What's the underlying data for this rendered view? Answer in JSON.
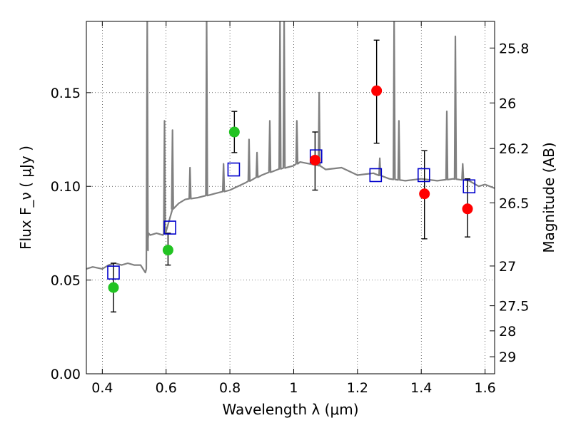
{
  "chart_data": {
    "type": "scatter",
    "xlabel": "Wavelength  λ (μm)",
    "ylabel": "Flux  F_ν  ( μJy )",
    "ylabel_right": "Magnitude (AB)",
    "xlim": [
      0.35,
      1.63
    ],
    "ylim": [
      0.0,
      0.188
    ],
    "grid": true,
    "x_ticks": [
      {
        "value": 0.4,
        "label": "0.4"
      },
      {
        "value": 0.6,
        "label": "0.6"
      },
      {
        "value": 0.8,
        "label": "0.8"
      },
      {
        "value": 1.0,
        "label": "1"
      },
      {
        "value": 1.2,
        "label": "1.2"
      },
      {
        "value": 1.4,
        "label": "1.4"
      },
      {
        "value": 1.6,
        "label": "1.6"
      }
    ],
    "y_ticks": [
      {
        "value": 0.0,
        "label": "0.00"
      },
      {
        "value": 0.05,
        "label": "0.05"
      },
      {
        "value": 0.1,
        "label": "0.10"
      },
      {
        "value": 0.15,
        "label": "0.15"
      }
    ],
    "right_ticks": [
      {
        "flux": 0.1738,
        "label": "25.8"
      },
      {
        "flux": 0.1445,
        "label": "26"
      },
      {
        "flux": 0.1202,
        "label": "26.2"
      },
      {
        "flux": 0.0912,
        "label": "26.5"
      },
      {
        "flux": 0.0575,
        "label": "27"
      },
      {
        "flux": 0.0363,
        "label": "27.5"
      },
      {
        "flux": 0.0229,
        "label": "28"
      },
      {
        "flux": 0.0091,
        "label": "29"
      }
    ],
    "colors": {
      "spectrum": "#808080",
      "green_points": "#22c322",
      "red_points": "#ff0000",
      "model_boxes": "#0000cc",
      "error_bars": "#000000"
    },
    "spectrum": {
      "x": [
        0.35,
        0.37,
        0.4,
        0.42,
        0.44,
        0.46,
        0.48,
        0.5,
        0.52,
        0.535,
        0.538,
        0.542,
        0.545,
        0.55,
        0.57,
        0.59,
        0.6,
        0.62,
        0.64,
        0.66,
        0.7,
        0.75,
        0.8,
        0.85,
        0.9,
        0.95,
        1.0,
        1.02,
        1.05,
        1.08,
        1.1,
        1.15,
        1.2,
        1.25,
        1.3,
        1.35,
        1.4,
        1.45,
        1.5,
        1.55,
        1.58,
        1.6,
        1.63
      ],
      "y": [
        0.056,
        0.057,
        0.056,
        0.058,
        0.059,
        0.058,
        0.059,
        0.058,
        0.058,
        0.054,
        0.056,
        0.07,
        0.075,
        0.074,
        0.075,
        0.074,
        0.076,
        0.088,
        0.091,
        0.093,
        0.094,
        0.096,
        0.098,
        0.102,
        0.106,
        0.109,
        0.111,
        0.113,
        0.112,
        0.111,
        0.109,
        0.11,
        0.106,
        0.107,
        0.104,
        0.103,
        0.104,
        0.103,
        0.104,
        0.103,
        0.1,
        0.101,
        0.099
      ]
    },
    "emission_lines": [
      {
        "x": 0.5408,
        "peak": 0.19
      },
      {
        "x": 0.595,
        "peak": 0.135
      },
      {
        "x": 0.62,
        "peak": 0.13
      },
      {
        "x": 0.675,
        "peak": 0.11
      },
      {
        "x": 0.727,
        "peak": 0.19
      },
      {
        "x": 0.78,
        "peak": 0.112
      },
      {
        "x": 0.86,
        "peak": 0.125
      },
      {
        "x": 0.885,
        "peak": 0.118
      },
      {
        "x": 0.925,
        "peak": 0.135
      },
      {
        "x": 0.957,
        "peak": 0.19
      },
      {
        "x": 0.97,
        "peak": 0.19
      },
      {
        "x": 1.01,
        "peak": 0.135
      },
      {
        "x": 1.08,
        "peak": 0.15
      },
      {
        "x": 1.27,
        "peak": 0.115
      },
      {
        "x": 1.315,
        "peak": 0.19
      },
      {
        "x": 1.33,
        "peak": 0.135
      },
      {
        "x": 1.48,
        "peak": 0.14
      },
      {
        "x": 1.507,
        "peak": 0.18
      },
      {
        "x": 1.53,
        "peak": 0.112
      }
    ],
    "observed_points": [
      {
        "x": 0.435,
        "y": 0.046,
        "yerr_low": 0.033,
        "yerr_high": 0.059,
        "color": "green"
      },
      {
        "x": 0.606,
        "y": 0.066,
        "yerr_low": 0.058,
        "yerr_high": 0.075,
        "color": "green"
      },
      {
        "x": 0.814,
        "y": 0.129,
        "yerr_low": 0.118,
        "yerr_high": 0.14,
        "color": "green"
      },
      {
        "x": 1.067,
        "y": 0.114,
        "yerr_low": 0.098,
        "yerr_high": 0.129,
        "color": "red"
      },
      {
        "x": 1.26,
        "y": 0.151,
        "yerr_low": 0.123,
        "yerr_high": 0.178,
        "color": "red"
      },
      {
        "x": 1.41,
        "y": 0.096,
        "yerr_low": 0.072,
        "yerr_high": 0.119,
        "color": "red"
      },
      {
        "x": 1.545,
        "y": 0.088,
        "yerr_low": 0.073,
        "yerr_high": 0.104,
        "color": "red"
      }
    ],
    "model_fluxes": [
      {
        "x": 0.435,
        "y": 0.054
      },
      {
        "x": 0.612,
        "y": 0.078
      },
      {
        "x": 0.812,
        "y": 0.109
      },
      {
        "x": 1.07,
        "y": 0.116
      },
      {
        "x": 1.257,
        "y": 0.106
      },
      {
        "x": 1.408,
        "y": 0.106
      },
      {
        "x": 1.55,
        "y": 0.1
      }
    ]
  }
}
